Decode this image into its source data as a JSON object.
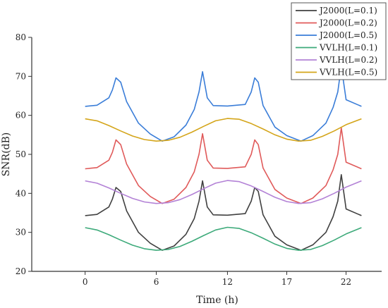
{
  "chart_data": {
    "type": "line",
    "xlabel": "Time (h)",
    "ylabel": "SNR(dB)",
    "x_ticks": [
      0,
      6,
      12,
      17,
      22
    ],
    "y_ticks": [
      20,
      30,
      40,
      50,
      60,
      70,
      80
    ],
    "xlim": [
      -4.5,
      25
    ],
    "ylim": [
      20,
      80
    ],
    "legend_position": "top-right",
    "series": [
      {
        "name": "J2000(L=0.1)",
        "color": "#404040",
        "x": [
          0,
          1.0,
          2.0,
          2.3,
          2.6,
          3.0,
          3.5,
          4.5,
          5.5,
          6.5,
          7.5,
          8.5,
          9.2,
          9.6,
          9.9,
          10.3,
          10.8,
          12.0,
          13.5,
          14.0,
          14.3,
          14.6,
          15.0,
          16.0,
          17.0,
          18.2,
          19.2,
          20.3,
          20.9,
          21.3,
          21.6,
          22.0,
          23.3
        ],
        "y": [
          34.3,
          34.6,
          36.5,
          38.5,
          41.5,
          40.5,
          35.5,
          30.0,
          27.2,
          25.4,
          26.5,
          29.5,
          33.5,
          38.0,
          43.2,
          36.5,
          34.5,
          34.4,
          34.8,
          38.0,
          41.5,
          40.5,
          34.5,
          29.0,
          26.8,
          25.4,
          26.8,
          30.0,
          34.0,
          38.0,
          44.8,
          36.0,
          34.3
        ]
      },
      {
        "name": "J2000(L=0.2)",
        "color": "#e05a5a",
        "x": [
          0,
          1.0,
          2.0,
          2.3,
          2.6,
          3.0,
          3.5,
          4.5,
          5.5,
          6.5,
          7.5,
          8.5,
          9.2,
          9.6,
          9.9,
          10.3,
          10.8,
          12.0,
          13.5,
          14.0,
          14.3,
          14.6,
          15.0,
          16.0,
          17.0,
          18.2,
          19.2,
          20.3,
          20.9,
          21.3,
          21.6,
          22.0,
          23.3
        ],
        "y": [
          46.3,
          46.6,
          48.5,
          50.5,
          53.7,
          52.5,
          47.5,
          42.0,
          39.2,
          37.4,
          38.5,
          41.5,
          45.5,
          50.0,
          55.3,
          48.5,
          46.5,
          46.4,
          46.8,
          50.0,
          53.7,
          52.5,
          46.5,
          41.0,
          38.8,
          37.4,
          38.8,
          42.0,
          46.0,
          50.0,
          56.8,
          48.0,
          46.3
        ]
      },
      {
        "name": "J2000(L=0.5)",
        "color": "#3a7dd8",
        "x": [
          0,
          1.0,
          2.0,
          2.3,
          2.6,
          3.0,
          3.5,
          4.5,
          5.5,
          6.5,
          7.5,
          8.5,
          9.2,
          9.6,
          9.9,
          10.3,
          10.8,
          12.0,
          13.5,
          14.0,
          14.3,
          14.6,
          15.0,
          16.0,
          17.0,
          18.2,
          19.2,
          20.3,
          20.9,
          21.3,
          21.6,
          22.0,
          23.3
        ],
        "y": [
          62.3,
          62.6,
          64.5,
          66.5,
          69.6,
          68.5,
          63.5,
          58.0,
          55.2,
          53.4,
          54.5,
          57.5,
          61.5,
          66.0,
          71.2,
          64.5,
          62.5,
          62.4,
          62.8,
          66.0,
          69.6,
          68.5,
          62.5,
          57.0,
          54.8,
          53.4,
          54.8,
          58.0,
          62.0,
          66.0,
          72.6,
          64.0,
          62.3
        ]
      },
      {
        "name": "VVLH(L=0.1)",
        "color": "#3daa7a",
        "x": [
          0,
          1.0,
          2.0,
          3.0,
          4.0,
          5.0,
          6.0,
          7.0,
          8.0,
          9.0,
          10.0,
          11.0,
          12.0,
          13.0,
          14.0,
          15.0,
          16.0,
          17.0,
          18.0,
          19.0,
          20.0,
          21.0,
          22.0,
          23.3
        ],
        "y": [
          31.2,
          30.6,
          29.4,
          28.0,
          26.7,
          25.8,
          25.4,
          25.6,
          26.4,
          27.7,
          29.2,
          30.6,
          31.3,
          31.0,
          29.9,
          28.5,
          27.0,
          25.9,
          25.4,
          25.6,
          26.6,
          28.0,
          29.6,
          31.2
        ]
      },
      {
        "name": "VVLH(L=0.2)",
        "color": "#b382d6",
        "x": [
          0,
          1.0,
          2.0,
          3.0,
          4.0,
          5.0,
          6.0,
          7.0,
          8.0,
          9.0,
          10.0,
          11.0,
          12.0,
          13.0,
          14.0,
          15.0,
          16.0,
          17.0,
          18.0,
          19.0,
          20.0,
          21.0,
          22.0,
          23.3
        ],
        "y": [
          43.2,
          42.6,
          41.4,
          40.0,
          38.7,
          37.8,
          37.4,
          37.6,
          38.4,
          39.7,
          41.2,
          42.6,
          43.3,
          43.0,
          41.9,
          40.5,
          39.0,
          37.9,
          37.4,
          37.6,
          38.6,
          40.0,
          41.6,
          43.2
        ]
      },
      {
        "name": "VVLH(L=0.5)",
        "color": "#d4a51a",
        "x": [
          0,
          1.0,
          2.0,
          3.0,
          4.0,
          5.0,
          6.0,
          7.0,
          8.0,
          9.0,
          10.0,
          11.0,
          12.0,
          13.0,
          14.0,
          15.0,
          16.0,
          17.0,
          18.0,
          19.0,
          20.0,
          21.0,
          22.0,
          23.3
        ],
        "y": [
          59.1,
          58.6,
          57.4,
          56.0,
          54.7,
          53.8,
          53.4,
          53.6,
          54.4,
          55.7,
          57.2,
          58.6,
          59.2,
          59.0,
          57.9,
          56.5,
          55.0,
          53.9,
          53.4,
          53.6,
          54.6,
          56.0,
          57.6,
          59.1
        ]
      }
    ]
  }
}
